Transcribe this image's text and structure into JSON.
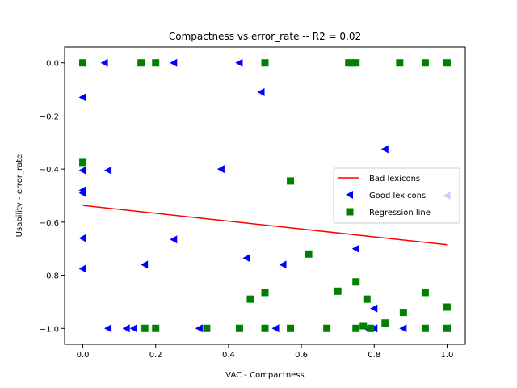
{
  "chart_data": {
    "type": "scatter",
    "title": "Compactness  vs  error_rate -- R2 = 0.02",
    "xlabel": "VAC - Compactness",
    "ylabel": "Usability - error_rate",
    "xlim": [
      -0.05,
      1.05
    ],
    "ylim": [
      -1.06,
      0.06
    ],
    "xticks": [
      0.0,
      0.2,
      0.4,
      0.6,
      0.8,
      1.0
    ],
    "xtick_labels": [
      "0.0",
      "0.2",
      "0.4",
      "0.6",
      "0.8",
      "1.0"
    ],
    "yticks": [
      0.0,
      -0.2,
      -0.4,
      -0.6,
      -0.8,
      -1.0
    ],
    "ytick_labels": [
      "0.0",
      "−0.2",
      "−0.4",
      "−0.6",
      "−0.8",
      "−1.0"
    ],
    "grid": false,
    "legend_position": "center-right",
    "series": [
      {
        "name": "Bad lexicons",
        "kind": "line",
        "color": "#ff0000",
        "x": [
          0.0,
          1.0
        ],
        "y": [
          -0.537,
          -0.685
        ]
      },
      {
        "name": "Good lexicons",
        "kind": "scatter",
        "marker": "triangle-left",
        "color": "#0000ff",
        "x": [
          0.0,
          0.06,
          0.25,
          0.43,
          0.0,
          0.49,
          0.83,
          0.0,
          0.07,
          0.38,
          0.0,
          0.0,
          0.25,
          0.0,
          0.17,
          0.45,
          0.55,
          0.75,
          0.0,
          0.07,
          0.12,
          0.14,
          0.32,
          0.53,
          0.78,
          0.8,
          0.88,
          0.8,
          1.0,
          1.0
        ],
        "y": [
          0.0,
          0.0,
          0.0,
          0.0,
          -0.13,
          -0.11,
          -0.325,
          -0.405,
          -0.405,
          -0.4,
          -0.48,
          -0.49,
          -0.665,
          -0.66,
          -0.76,
          -0.735,
          -0.76,
          -0.7,
          -0.775,
          -1.0,
          -1.0,
          -1.0,
          -1.0,
          -1.0,
          -1.0,
          -0.925,
          -1.0,
          -1.0,
          -1.0,
          -0.5
        ]
      },
      {
        "name": "Regression line",
        "kind": "scatter",
        "marker": "square",
        "color": "#008000",
        "x": [
          0.0,
          0.16,
          0.2,
          0.5,
          0.73,
          0.74,
          0.75,
          0.87,
          0.94,
          1.0,
          0.0,
          0.57,
          0.62,
          0.46,
          0.5,
          0.7,
          0.75,
          0.78,
          0.77,
          0.75,
          0.83,
          0.88,
          0.94,
          1.0,
          0.17,
          0.2,
          0.34,
          0.43,
          0.5,
          0.57,
          0.67,
          0.79,
          0.94,
          1.0
        ],
        "y": [
          0.0,
          0.0,
          0.0,
          0.0,
          0.0,
          0.0,
          0.0,
          0.0,
          0.0,
          0.0,
          -0.375,
          -0.445,
          -0.72,
          -0.89,
          -0.865,
          -0.86,
          -0.825,
          -0.89,
          -0.99,
          -1.0,
          -0.98,
          -0.94,
          -0.865,
          -0.92,
          -1.0,
          -1.0,
          -1.0,
          -1.0,
          -1.0,
          -1.0,
          -1.0,
          -1.0,
          -1.0,
          -1.0
        ]
      }
    ]
  }
}
